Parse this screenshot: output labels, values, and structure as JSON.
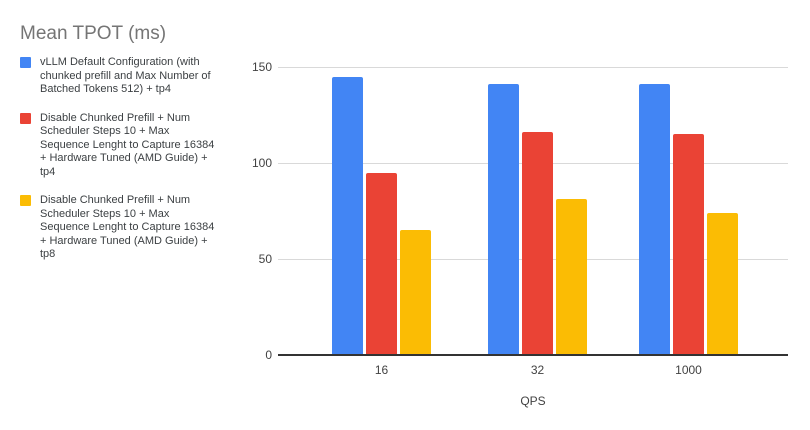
{
  "title": "Mean TPOT (ms)",
  "chart_data": {
    "type": "bar",
    "title": "Mean TPOT (ms)",
    "xlabel": "QPS",
    "ylabel": "",
    "categories": [
      "16",
      "32",
      "1000"
    ],
    "series": [
      {
        "name": "vLLM Default Configuration (with chunked prefill and Max Number of Batched Tokens 512) + tp4",
        "color": "#4285F4",
        "values": [
          145,
          141,
          141
        ]
      },
      {
        "name": "Disable Chunked Prefill + Num Scheduler Steps 10 + Max Sequence Lenght to Capture 16384 + Hardware Tuned (AMD Guide) + tp4",
        "color": "#EA4335",
        "values": [
          95,
          116,
          115
        ]
      },
      {
        "name": "Disable Chunked Prefill + Num Scheduler Steps 10 + Max Sequence Lenght to Capture 16384 + Hardware Tuned (AMD Guide) + tp8",
        "color": "#FBBC04",
        "values": [
          65,
          81,
          74
        ]
      }
    ],
    "ylim": [
      0,
      150
    ],
    "yticks": [
      0,
      50,
      100,
      150
    ],
    "grid": true,
    "legend_position": "left",
    "colors": {
      "gridline": "#d9d9d9",
      "baseline": "#333333",
      "title_text": "#757575",
      "axis_text": "#424242",
      "legend_text": "#3c4043",
      "background": "#ffffff"
    }
  }
}
